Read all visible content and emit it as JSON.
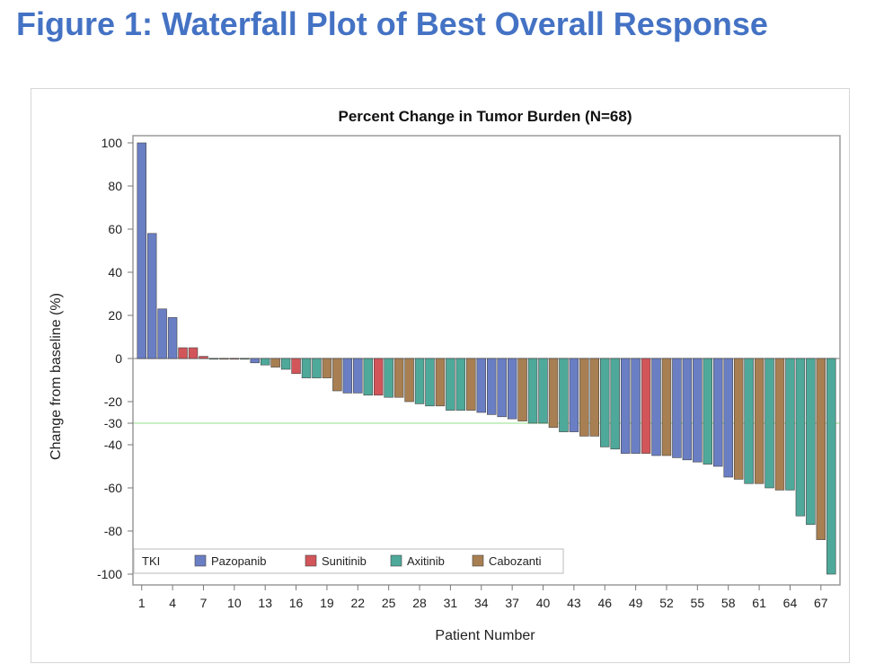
{
  "figure_title": "Figure 1: Waterfall Plot of Best Overall Response",
  "chart_data": {
    "type": "bar",
    "title": "Percent Change in Tumor Burden (N=68)",
    "xlabel": "Patient Number",
    "ylabel": "Change from baseline (%)",
    "ylim": [
      -100,
      100
    ],
    "yticks": [
      100,
      80,
      60,
      40,
      20,
      0,
      -20,
      -30,
      -40,
      -60,
      -80,
      -100
    ],
    "xticks": [
      1,
      4,
      7,
      10,
      13,
      16,
      19,
      22,
      25,
      28,
      31,
      34,
      37,
      40,
      43,
      46,
      49,
      52,
      55,
      58,
      61,
      64,
      67
    ],
    "reference_lines": [
      0,
      -30
    ],
    "grid": false,
    "legend": {
      "title": "TKI",
      "position": "bottom-left",
      "entries": [
        {
          "name": "Pazopanib",
          "color": "#6A7EC4"
        },
        {
          "name": "Sunitinib",
          "color": "#D2555A"
        },
        {
          "name": "Axitinib",
          "color": "#4EA99A"
        },
        {
          "name": "Cabozanti",
          "color": "#A87F52"
        }
      ]
    },
    "bars": [
      {
        "patient": 1,
        "value": 100,
        "tki": "Pazopanib"
      },
      {
        "patient": 2,
        "value": 58,
        "tki": "Pazopanib"
      },
      {
        "patient": 3,
        "value": 23,
        "tki": "Pazopanib"
      },
      {
        "patient": 4,
        "value": 19,
        "tki": "Pazopanib"
      },
      {
        "patient": 5,
        "value": 5,
        "tki": "Sunitinib"
      },
      {
        "patient": 6,
        "value": 5,
        "tki": "Sunitinib"
      },
      {
        "patient": 7,
        "value": 1,
        "tki": "Sunitinib"
      },
      {
        "patient": 8,
        "value": 0,
        "tki": "Axitinib"
      },
      {
        "patient": 9,
        "value": 0,
        "tki": "Cabozanti"
      },
      {
        "patient": 10,
        "value": 0,
        "tki": "Sunitinib"
      },
      {
        "patient": 11,
        "value": 0,
        "tki": "Axitinib"
      },
      {
        "patient": 12,
        "value": -2,
        "tki": "Pazopanib"
      },
      {
        "patient": 13,
        "value": -3,
        "tki": "Axitinib"
      },
      {
        "patient": 14,
        "value": -4,
        "tki": "Cabozanti"
      },
      {
        "patient": 15,
        "value": -5,
        "tki": "Axitinib"
      },
      {
        "patient": 16,
        "value": -7,
        "tki": "Sunitinib"
      },
      {
        "patient": 17,
        "value": -9,
        "tki": "Axitinib"
      },
      {
        "patient": 18,
        "value": -9,
        "tki": "Axitinib"
      },
      {
        "patient": 19,
        "value": -9,
        "tki": "Cabozanti"
      },
      {
        "patient": 20,
        "value": -15,
        "tki": "Cabozanti"
      },
      {
        "patient": 21,
        "value": -16,
        "tki": "Pazopanib"
      },
      {
        "patient": 22,
        "value": -16,
        "tki": "Pazopanib"
      },
      {
        "patient": 23,
        "value": -17,
        "tki": "Axitinib"
      },
      {
        "patient": 24,
        "value": -17,
        "tki": "Sunitinib"
      },
      {
        "patient": 25,
        "value": -18,
        "tki": "Axitinib"
      },
      {
        "patient": 26,
        "value": -18,
        "tki": "Cabozanti"
      },
      {
        "patient": 27,
        "value": -20,
        "tki": "Cabozanti"
      },
      {
        "patient": 28,
        "value": -21,
        "tki": "Axitinib"
      },
      {
        "patient": 29,
        "value": -22,
        "tki": "Axitinib"
      },
      {
        "patient": 30,
        "value": -22,
        "tki": "Cabozanti"
      },
      {
        "patient": 31,
        "value": -24,
        "tki": "Axitinib"
      },
      {
        "patient": 32,
        "value": -24,
        "tki": "Axitinib"
      },
      {
        "patient": 33,
        "value": -24,
        "tki": "Cabozanti"
      },
      {
        "patient": 34,
        "value": -25,
        "tki": "Pazopanib"
      },
      {
        "patient": 35,
        "value": -26,
        "tki": "Pazopanib"
      },
      {
        "patient": 36,
        "value": -27,
        "tki": "Pazopanib"
      },
      {
        "patient": 37,
        "value": -28,
        "tki": "Pazopanib"
      },
      {
        "patient": 38,
        "value": -29,
        "tki": "Cabozanti"
      },
      {
        "patient": 39,
        "value": -30,
        "tki": "Axitinib"
      },
      {
        "patient": 40,
        "value": -30,
        "tki": "Axitinib"
      },
      {
        "patient": 41,
        "value": -32,
        "tki": "Cabozanti"
      },
      {
        "patient": 42,
        "value": -34,
        "tki": "Axitinib"
      },
      {
        "patient": 43,
        "value": -34,
        "tki": "Pazopanib"
      },
      {
        "patient": 44,
        "value": -36,
        "tki": "Cabozanti"
      },
      {
        "patient": 45,
        "value": -36,
        "tki": "Cabozanti"
      },
      {
        "patient": 46,
        "value": -41,
        "tki": "Axitinib"
      },
      {
        "patient": 47,
        "value": -42,
        "tki": "Axitinib"
      },
      {
        "patient": 48,
        "value": -44,
        "tki": "Pazopanib"
      },
      {
        "patient": 49,
        "value": -44,
        "tki": "Pazopanib"
      },
      {
        "patient": 50,
        "value": -44,
        "tki": "Sunitinib"
      },
      {
        "patient": 51,
        "value": -45,
        "tki": "Pazopanib"
      },
      {
        "patient": 52,
        "value": -45,
        "tki": "Cabozanti"
      },
      {
        "patient": 53,
        "value": -46,
        "tki": "Pazopanib"
      },
      {
        "patient": 54,
        "value": -47,
        "tki": "Pazopanib"
      },
      {
        "patient": 55,
        "value": -48,
        "tki": "Pazopanib"
      },
      {
        "patient": 56,
        "value": -49,
        "tki": "Axitinib"
      },
      {
        "patient": 57,
        "value": -50,
        "tki": "Pazopanib"
      },
      {
        "patient": 58,
        "value": -55,
        "tki": "Pazopanib"
      },
      {
        "patient": 59,
        "value": -56,
        "tki": "Cabozanti"
      },
      {
        "patient": 60,
        "value": -58,
        "tki": "Axitinib"
      },
      {
        "patient": 61,
        "value": -58,
        "tki": "Cabozanti"
      },
      {
        "patient": 62,
        "value": -60,
        "tki": "Axitinib"
      },
      {
        "patient": 63,
        "value": -61,
        "tki": "Cabozanti"
      },
      {
        "patient": 64,
        "value": -61,
        "tki": "Axitinib"
      },
      {
        "patient": 65,
        "value": -73,
        "tki": "Axitinib"
      },
      {
        "patient": 66,
        "value": -77,
        "tki": "Axitinib"
      },
      {
        "patient": 67,
        "value": -84,
        "tki": "Cabozanti"
      },
      {
        "patient": 68,
        "value": -100,
        "tki": "Axitinib"
      }
    ]
  },
  "colors": {
    "title_blue": "#4472C4",
    "axis_line": "#9a9a9a",
    "reference_line_30": "#b6ebb0"
  }
}
